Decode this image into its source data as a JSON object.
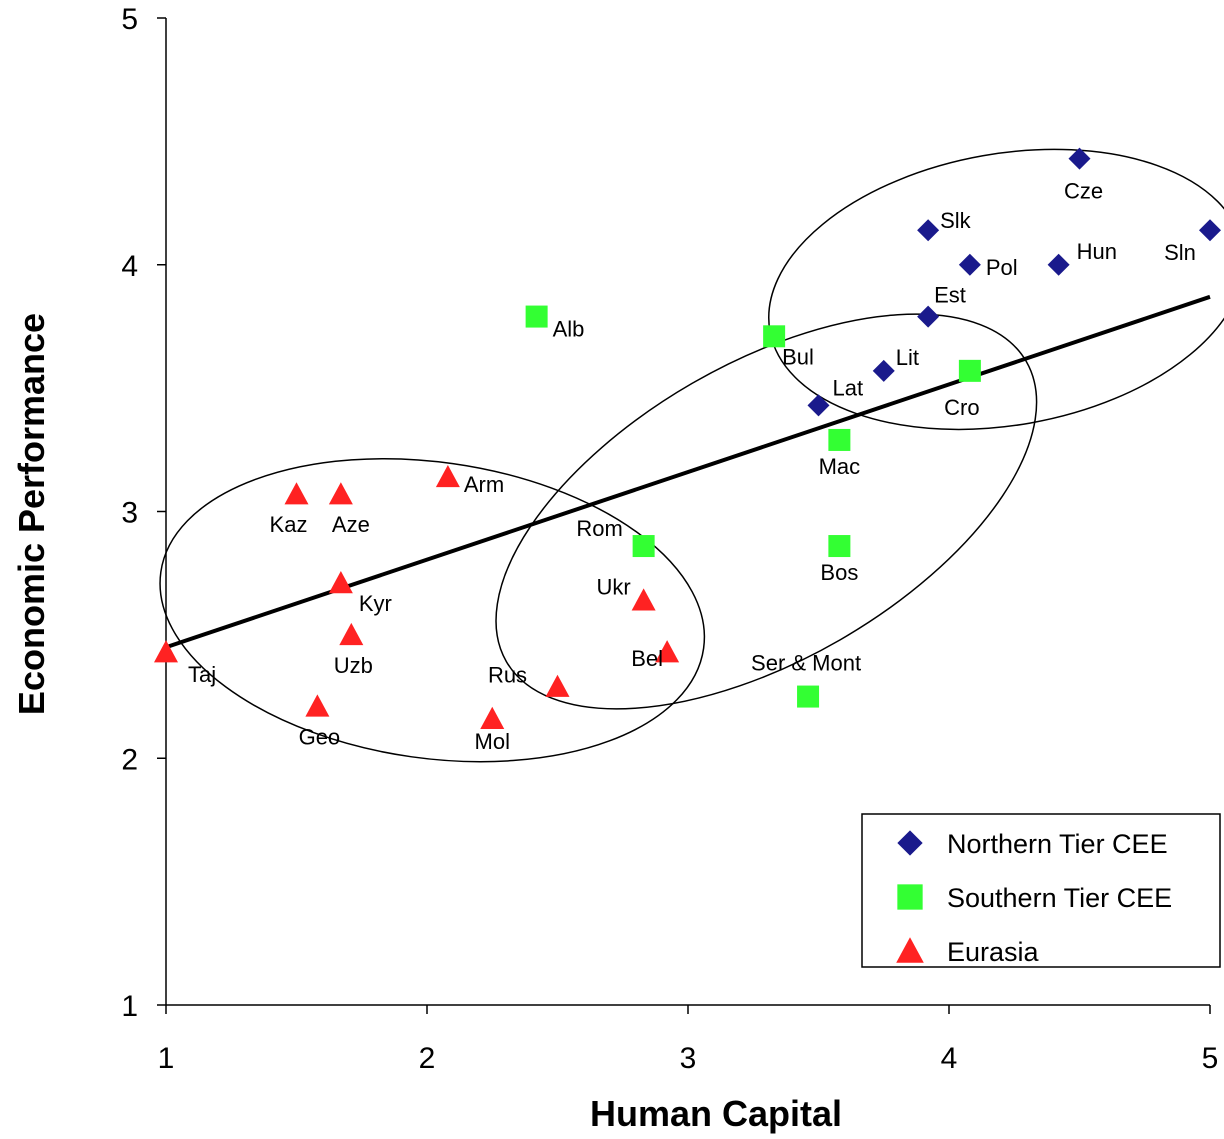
{
  "chart_data": {
    "type": "scatter",
    "title": "",
    "xlabel": "Human Capital",
    "ylabel": "Economic Performance",
    "xlim": [
      1,
      5
    ],
    "ylim": [
      1,
      5
    ],
    "xticks": [
      "1",
      "2",
      "3",
      "4",
      "5"
    ],
    "yticks": [
      "1",
      "2",
      "3",
      "4",
      "5"
    ],
    "grid": false,
    "legend_position": "bottom-right",
    "series": [
      {
        "name": "Northern Tier CEE",
        "marker": "diamond",
        "color": "#1a1a8c",
        "points": [
          {
            "label": "Cze",
            "x": 4.5,
            "y": 4.43
          },
          {
            "label": "Slk",
            "x": 3.92,
            "y": 4.14
          },
          {
            "label": "Sln",
            "x": 5.0,
            "y": 4.14
          },
          {
            "label": "Pol",
            "x": 4.08,
            "y": 4.0
          },
          {
            "label": "Hun",
            "x": 4.42,
            "y": 4.0
          },
          {
            "label": "Est",
            "x": 3.92,
            "y": 3.79
          },
          {
            "label": "Lit",
            "x": 3.75,
            "y": 3.57
          },
          {
            "label": "Lat",
            "x": 3.5,
            "y": 3.43
          }
        ]
      },
      {
        "name": "Southern Tier CEE",
        "marker": "square",
        "color": "#33ff33",
        "points": [
          {
            "label": "Alb",
            "x": 2.42,
            "y": 3.79
          },
          {
            "label": "Bul",
            "x": 3.33,
            "y": 3.71
          },
          {
            "label": "Cro",
            "x": 4.08,
            "y": 3.57
          },
          {
            "label": "Mac",
            "x": 3.58,
            "y": 3.29
          },
          {
            "label": "Rom",
            "x": 2.83,
            "y": 2.86
          },
          {
            "label": "Bos",
            "x": 3.58,
            "y": 2.86
          },
          {
            "label": "Ser & Mont",
            "x": 3.46,
            "y": 2.25
          }
        ]
      },
      {
        "name": "Eurasia",
        "marker": "triangle",
        "color": "#ff2222",
        "points": [
          {
            "label": "Arm",
            "x": 2.08,
            "y": 3.14
          },
          {
            "label": "Kaz",
            "x": 1.5,
            "y": 3.07
          },
          {
            "label": "Aze",
            "x": 1.67,
            "y": 3.07
          },
          {
            "label": "Kyr",
            "x": 1.67,
            "y": 2.71
          },
          {
            "label": "Uzb",
            "x": 1.71,
            "y": 2.5
          },
          {
            "label": "Ukr",
            "x": 2.83,
            "y": 2.64
          },
          {
            "label": "Bel",
            "x": 2.92,
            "y": 2.43
          },
          {
            "label": "Taj",
            "x": 1.0,
            "y": 2.43
          },
          {
            "label": "Rus",
            "x": 2.5,
            "y": 2.29
          },
          {
            "label": "Geo",
            "x": 1.58,
            "y": 2.21
          },
          {
            "label": "Mol",
            "x": 2.25,
            "y": 2.16
          }
        ]
      }
    ],
    "trendline": {
      "x": [
        1.0,
        5.0
      ],
      "y": [
        2.45,
        3.87
      ]
    },
    "ellipses": [
      {
        "group": "Eurasia",
        "cx": 2.02,
        "cy": 2.6,
        "rx": 1.05,
        "ry": 0.6,
        "angle": 8
      },
      {
        "group": "Southern Tier CEE",
        "cx": 3.3,
        "cy": 3.0,
        "rx": 1.15,
        "ry": 0.6,
        "angle": -30
      },
      {
        "group": "Northern Tier CEE",
        "cx": 4.22,
        "cy": 3.9,
        "rx": 0.92,
        "ry": 0.55,
        "angle": -10
      }
    ]
  }
}
